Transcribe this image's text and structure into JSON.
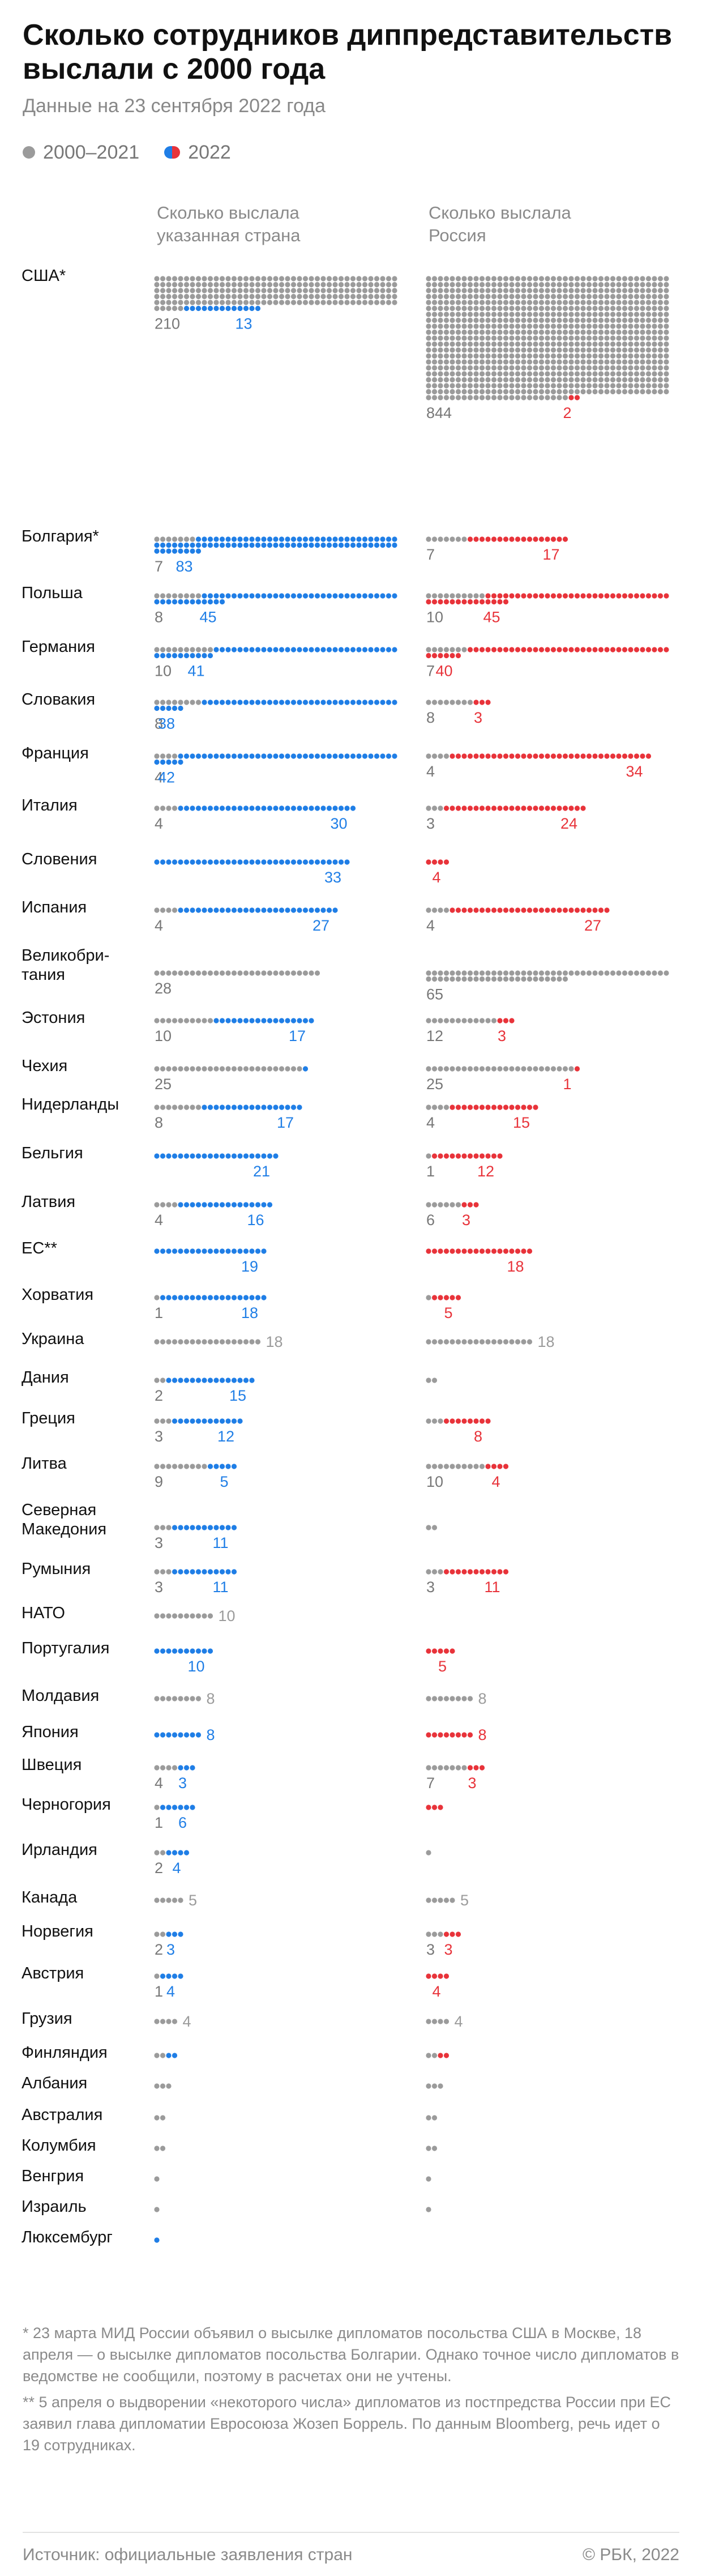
{
  "header": {
    "title": "Сколько сотрудников диппредставительств выслали с 2000 года",
    "subtitle": "Данные на 23 сентября 2022 года"
  },
  "legend": {
    "old_label": "2000–2021",
    "new_label": "2022"
  },
  "colors": {
    "gray": "#9b9b9b",
    "blue": "#1f7ee6",
    "red": "#e8333a",
    "label": "#777777"
  },
  "chart_data": {
    "type": "dot-matrix",
    "column_headers": [
      "Сколько выслала указанная страна",
      "Сколько выслала Россия"
    ],
    "rows": [
      {
        "country": "США*",
        "expelled_old": 210,
        "expelled_2022": 13,
        "by_russia_old": 844,
        "by_russia_2022": 2,
        "tall": true
      },
      {
        "country": "Болгария*",
        "expelled_old": 7,
        "expelled_2022": 83,
        "by_russia_old": 7,
        "by_russia_2022": 17
      },
      {
        "country": "Польша",
        "expelled_old": 8,
        "expelled_2022": 45,
        "by_russia_old": 10,
        "by_russia_2022": 45
      },
      {
        "country": "Германия",
        "expelled_old": 10,
        "expelled_2022": 41,
        "by_russia_old": 7,
        "by_russia_2022": 40
      },
      {
        "country": "Словакия",
        "expelled_old": 8,
        "expelled_2022": 38,
        "by_russia_old": 8,
        "by_russia_2022": 3
      },
      {
        "country": "Франция",
        "expelled_old": 4,
        "expelled_2022": 42,
        "by_russia_old": 4,
        "by_russia_2022": 34
      },
      {
        "country": "Италия",
        "expelled_old": 4,
        "expelled_2022": 30,
        "by_russia_old": 3,
        "by_russia_2022": 24
      },
      {
        "country": "Словения",
        "expelled_old": 0,
        "expelled_2022": 33,
        "by_russia_old": 0,
        "by_russia_2022": 4
      },
      {
        "country": "Испания",
        "expelled_old": 4,
        "expelled_2022": 27,
        "by_russia_old": 4,
        "by_russia_2022": 27
      },
      {
        "country": "Великобритания",
        "expelled_old": 28,
        "expelled_2022": 0,
        "by_russia_old": 65,
        "by_russia_2022": 0,
        "label_lines": [
          "Великобри-",
          "тания"
        ]
      },
      {
        "country": "Эстония",
        "expelled_old": 10,
        "expelled_2022": 17,
        "by_russia_old": 12,
        "by_russia_2022": 3
      },
      {
        "country": "Чехия",
        "expelled_old": 25,
        "expelled_2022": 1,
        "by_russia_old": 25,
        "by_russia_2022": 1,
        "hide_new_label": true
      },
      {
        "country": "Нидерланды",
        "expelled_old": 8,
        "expelled_2022": 17,
        "by_russia_old": 4,
        "by_russia_2022": 15
      },
      {
        "country": "Бельгия",
        "expelled_old": 0,
        "expelled_2022": 21,
        "by_russia_old": 1,
        "by_russia_2022": 12,
        "hide_old_label": true
      },
      {
        "country": "Латвия",
        "expelled_old": 4,
        "expelled_2022": 16,
        "by_russia_old": 6,
        "by_russia_2022": 3
      },
      {
        "country": "ЕС**",
        "expelled_old": 0,
        "expelled_2022": 19,
        "by_russia_old": 0,
        "by_russia_2022": 18
      },
      {
        "country": "Хорватия",
        "expelled_old": 1,
        "expelled_2022": 18,
        "by_russia_old": 1,
        "by_russia_2022": 5,
        "hide_right_old_label": true
      },
      {
        "country": "Украина",
        "expelled_old": 18,
        "expelled_2022": 0,
        "by_russia_old": 18,
        "by_russia_2022": 0,
        "inline": true
      },
      {
        "country": "Дания",
        "expelled_old": 2,
        "expelled_2022": 15,
        "by_russia_old": 2,
        "by_russia_2022": 0,
        "hide_right_old_label": true
      },
      {
        "country": "Греция",
        "expelled_old": 3,
        "expelled_2022": 12,
        "by_russia_old": 3,
        "by_russia_2022": 8,
        "hide_right_old_label": true
      },
      {
        "country": "Литва",
        "expelled_old": 9,
        "expelled_2022": 5,
        "by_russia_old": 10,
        "by_russia_2022": 4
      },
      {
        "country": "Северная Македония",
        "expelled_old": 3,
        "expelled_2022": 11,
        "by_russia_old": 2,
        "by_russia_2022": 0,
        "label_lines": [
          "Северная",
          "Македония"
        ],
        "hide_right_old_label": true
      },
      {
        "country": "Румыния",
        "expelled_old": 3,
        "expelled_2022": 11,
        "by_russia_old": 3,
        "by_russia_2022": 11
      },
      {
        "country": "НАТО",
        "expelled_old": 10,
        "expelled_2022": 0,
        "by_russia_old": 0,
        "by_russia_2022": 0,
        "inline": true
      },
      {
        "country": "Португалия",
        "expelled_old": 0,
        "expelled_2022": 10,
        "by_russia_old": 0,
        "by_russia_2022": 5
      },
      {
        "country": "Молдавия",
        "expelled_old": 8,
        "expelled_2022": 0,
        "by_russia_old": 8,
        "by_russia_2022": 0,
        "inline": true
      },
      {
        "country": "Япония",
        "expelled_old": 0,
        "expelled_2022": 8,
        "by_russia_old": 0,
        "by_russia_2022": 8,
        "inline": true
      },
      {
        "country": "Швеция",
        "expelled_old": 4,
        "expelled_2022": 3,
        "by_russia_old": 7,
        "by_russia_2022": 3
      },
      {
        "country": "Черногория",
        "expelled_old": 1,
        "expelled_2022": 6,
        "by_russia_old": 0,
        "by_russia_2022": 3,
        "hide_right_new_label": true
      },
      {
        "country": "Ирландия",
        "expelled_old": 2,
        "expelled_2022": 4,
        "by_russia_old": 1,
        "by_russia_2022": 0,
        "hide_right_old_label": true
      },
      {
        "country": "Канада",
        "expelled_old": 5,
        "expelled_2022": 0,
        "by_russia_old": 5,
        "by_russia_2022": 0,
        "inline": true
      },
      {
        "country": "Норвегия",
        "expelled_old": 2,
        "expelled_2022": 3,
        "by_russia_old": 3,
        "by_russia_2022": 3
      },
      {
        "country": "Австрия",
        "expelled_old": 1,
        "expelled_2022": 4,
        "by_russia_old": 0,
        "by_russia_2022": 4
      },
      {
        "country": "Грузия",
        "expelled_old": 4,
        "expelled_2022": 0,
        "by_russia_old": 4,
        "by_russia_2022": 0,
        "inline": true
      },
      {
        "country": "Финляндия",
        "expelled_old": 2,
        "expelled_2022": 2,
        "by_russia_old": 2,
        "by_russia_2022": 2,
        "hide_all_labels": true
      },
      {
        "country": "Албания",
        "expelled_old": 3,
        "expelled_2022": 0,
        "by_russia_old": 3,
        "by_russia_2022": 0,
        "hide_all_labels": true
      },
      {
        "country": "Австралия",
        "expelled_old": 2,
        "expelled_2022": 0,
        "by_russia_old": 2,
        "by_russia_2022": 0,
        "hide_all_labels": true
      },
      {
        "country": "Колумбия",
        "expelled_old": 2,
        "expelled_2022": 0,
        "by_russia_old": 2,
        "by_russia_2022": 0,
        "hide_all_labels": true
      },
      {
        "country": "Венгрия",
        "expelled_old": 1,
        "expelled_2022": 0,
        "by_russia_old": 1,
        "by_russia_2022": 0,
        "hide_all_labels": true
      },
      {
        "country": "Израиль",
        "expelled_old": 1,
        "expelled_2022": 0,
        "by_russia_old": 1,
        "by_russia_2022": 0,
        "hide_all_labels": true
      },
      {
        "country": "Люксембург",
        "expelled_old": 0,
        "expelled_2022": 1,
        "by_russia_old": 0,
        "by_russia_2022": 0,
        "hide_all_labels": true
      }
    ]
  },
  "footnotes": {
    "note1": "* 23 марта МИД России объявил о высылке дипломатов посольства США в Москве, 18 апреля — о высылке дипломатов посольства Болгарии. Однако точное число дипломатов в ведомстве не сообщили, поэтому в расчетах они не учтены.",
    "note2": "** 5 апреля о выдворении «некоторого числа» дипломатов из постпредства России при ЕС заявил глава дипломатии Евросоюза Жозеп Боррель. По данным Bloomberg, речь идет о 19 сотрудниках."
  },
  "source": "Источник: официальные заявления стран",
  "copyright": "© РБК, 2022"
}
